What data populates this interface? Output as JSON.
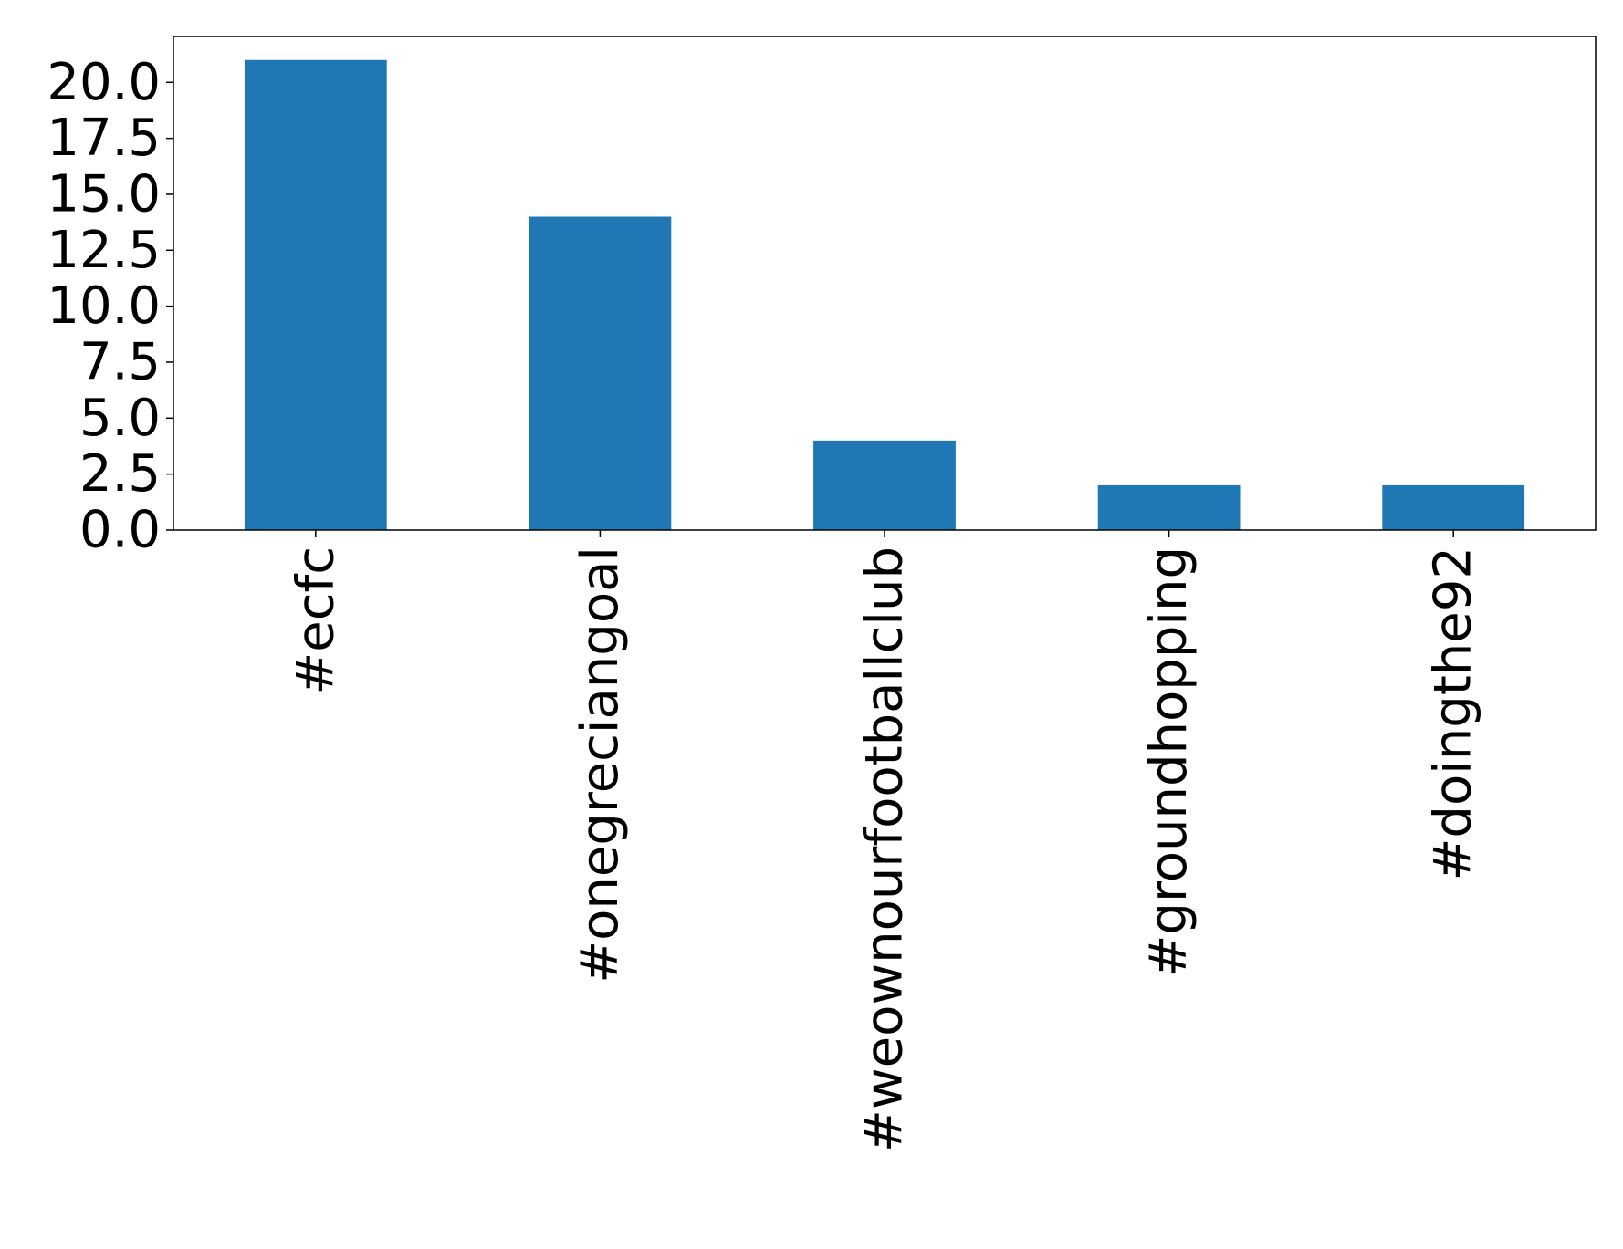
{
  "chart_data": {
    "type": "bar",
    "title": "",
    "xlabel": "",
    "ylabel": "",
    "categories": [
      "#ecfc",
      "#onegreciangoal",
      "#weownourfootballclub",
      "#groundhopping",
      "#doingthe92"
    ],
    "values": [
      21,
      14,
      4,
      2,
      2
    ],
    "ylim": [
      0,
      22.05
    ],
    "yticks": [
      0.0,
      2.5,
      5.0,
      7.5,
      10.0,
      12.5,
      15.0,
      17.5,
      20.0
    ],
    "ytick_labels": [
      "0.0",
      "2.5",
      "5.0",
      "7.5",
      "10.0",
      "12.5",
      "15.0",
      "17.5",
      "20.0"
    ],
    "grid": false,
    "legend": "none",
    "bar_color": "#1f77b4"
  }
}
